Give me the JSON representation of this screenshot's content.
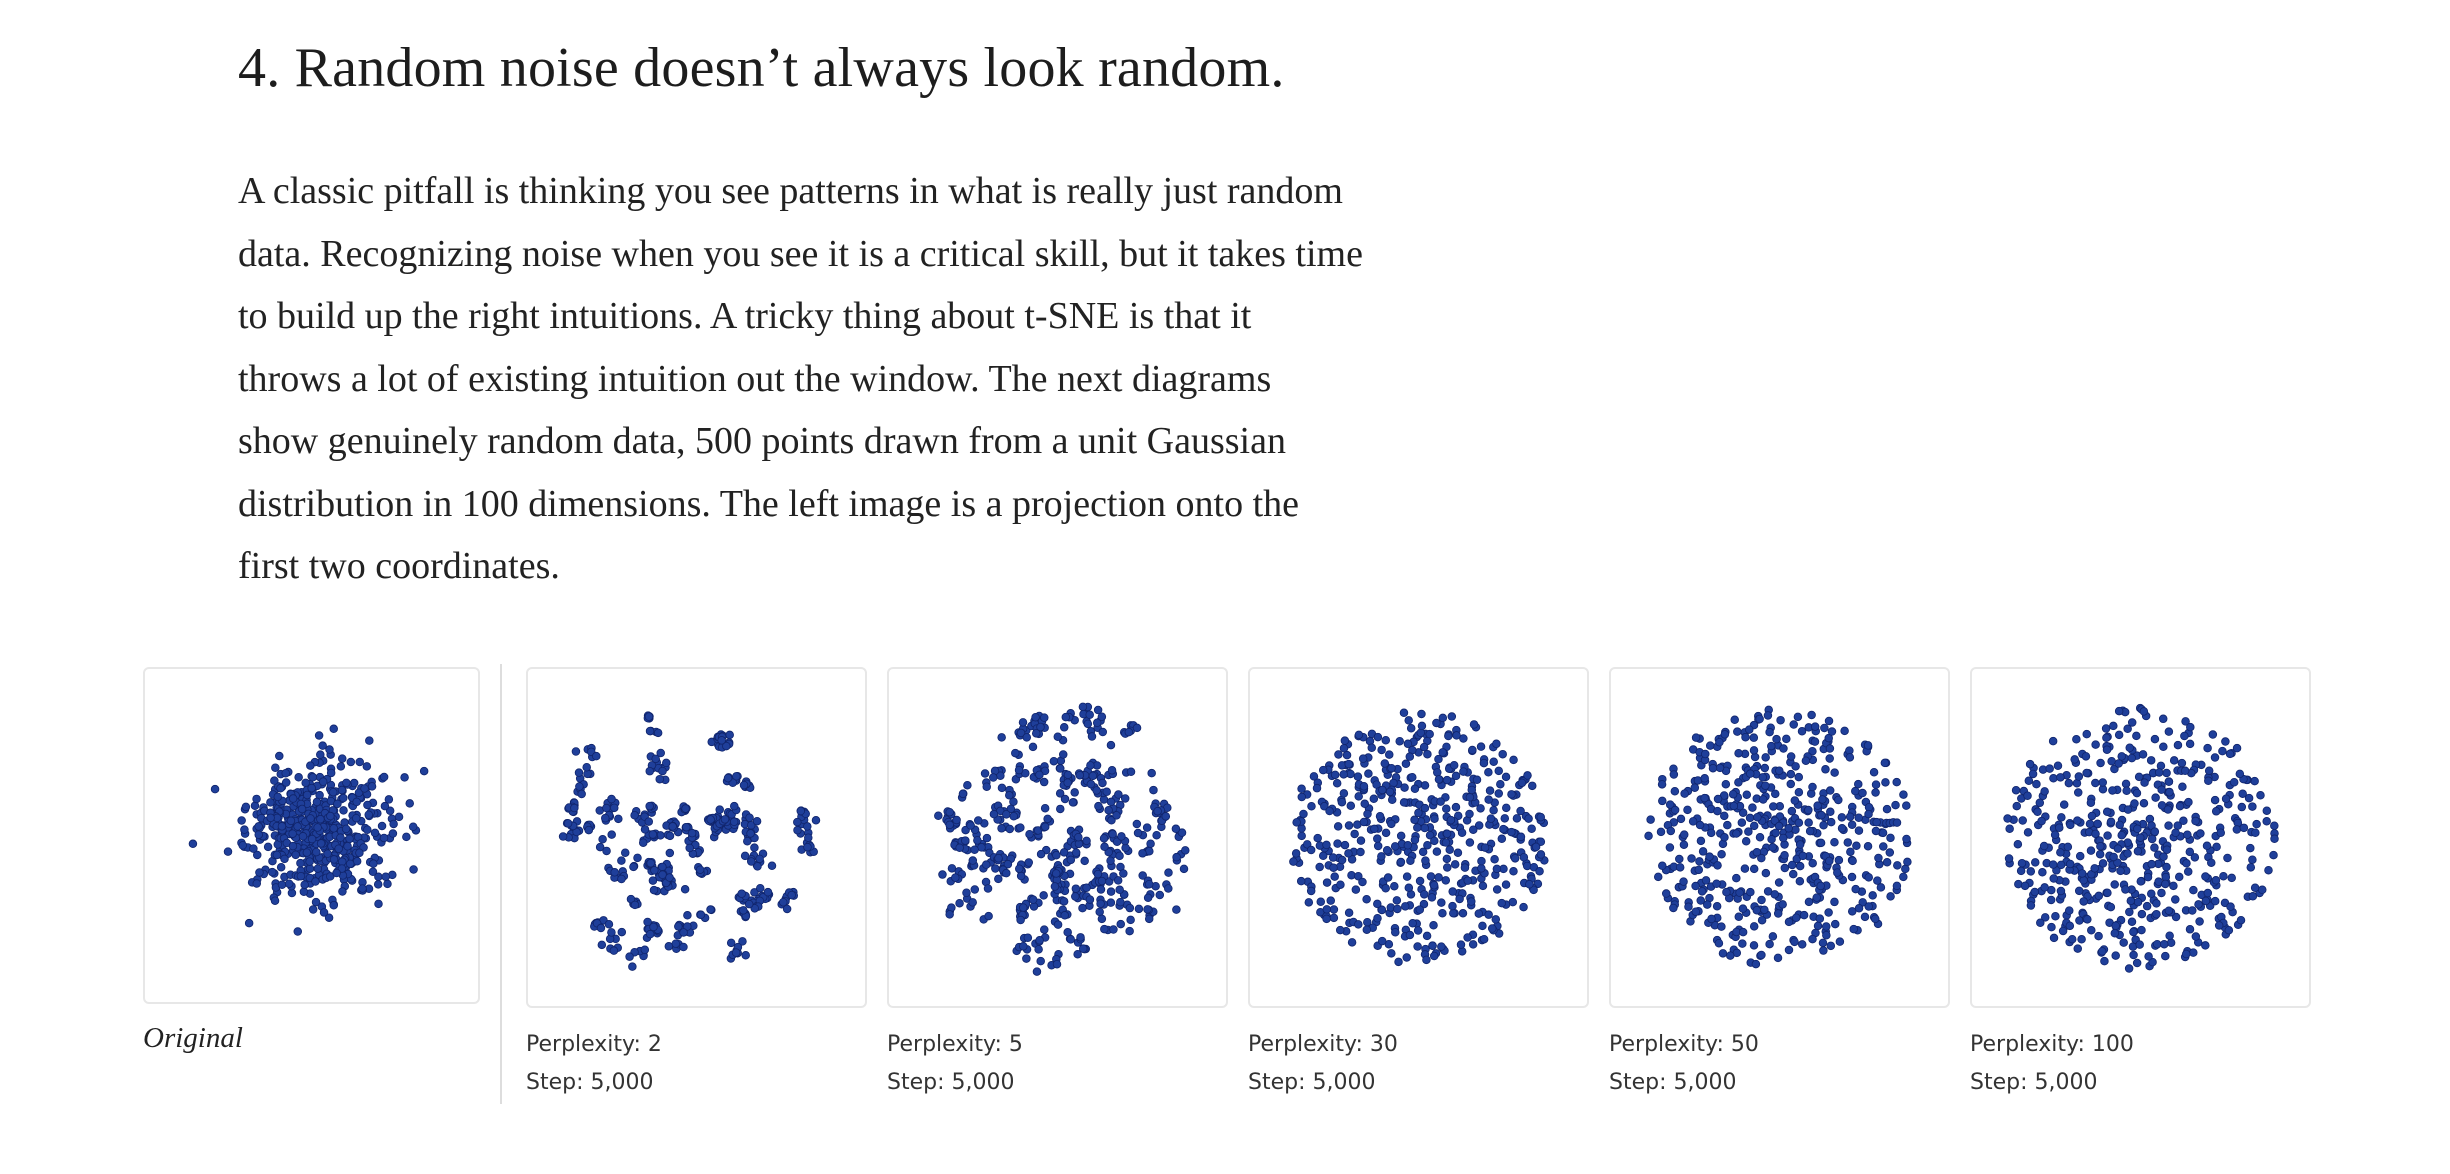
{
  "section": {
    "heading": "4. Random noise doesn’t always look random.",
    "paragraph_lines": [
      "A classic pitfall is thinking you see patterns in what is really just random",
      "data. Recognizing noise when you see it is a critical skill, but it takes time",
      "to build up the right intuitions. A tricky thing about t-SNE is that it",
      "throws a lot of existing intuition out the window. The next diagrams",
      "show genuinely random data, 500 points drawn from a unit Gaussian",
      "distribution in 100 dimensions. The left image is a projection onto the",
      "first two coordinates."
    ]
  },
  "original": {
    "caption": "Original"
  },
  "runs": [
    {
      "perplexity_label": "Perplexity: 2",
      "step_label": "Step: 5,000"
    },
    {
      "perplexity_label": "Perplexity: 5",
      "step_label": "Step: 5,000"
    },
    {
      "perplexity_label": "Perplexity: 30",
      "step_label": "Step: 5,000"
    },
    {
      "perplexity_label": "Perplexity: 50",
      "step_label": "Step: 5,000"
    },
    {
      "perplexity_label": "Perplexity: 100",
      "step_label": "Step: 5,000"
    }
  ],
  "colors": {
    "point_fill": "#1f3f9a",
    "point_stroke": "#10246b",
    "panel_border": "#e7e7e7"
  },
  "chart_data": [
    {
      "type": "scatter",
      "title": "Original",
      "n_points": 500
    },
    {
      "type": "scatter",
      "title": "Perplexity: 2 / Step: 5,000",
      "perplexity": 2,
      "step": 5000,
      "n_points": 500
    },
    {
      "type": "scatter",
      "title": "Perplexity: 5 / Step: 5,000",
      "perplexity": 5,
      "step": 5000,
      "n_points": 500
    },
    {
      "type": "scatter",
      "title": "Perplexity: 30 / Step: 5,000",
      "perplexity": 30,
      "step": 5000,
      "n_points": 500
    },
    {
      "type": "scatter",
      "title": "Perplexity: 50 / Step: 5,000",
      "perplexity": 50,
      "step": 5000,
      "n_points": 500
    },
    {
      "type": "scatter",
      "title": "Perplexity: 100 / Step: 5,000",
      "perplexity": 100,
      "step": 5000,
      "n_points": 500
    }
  ]
}
